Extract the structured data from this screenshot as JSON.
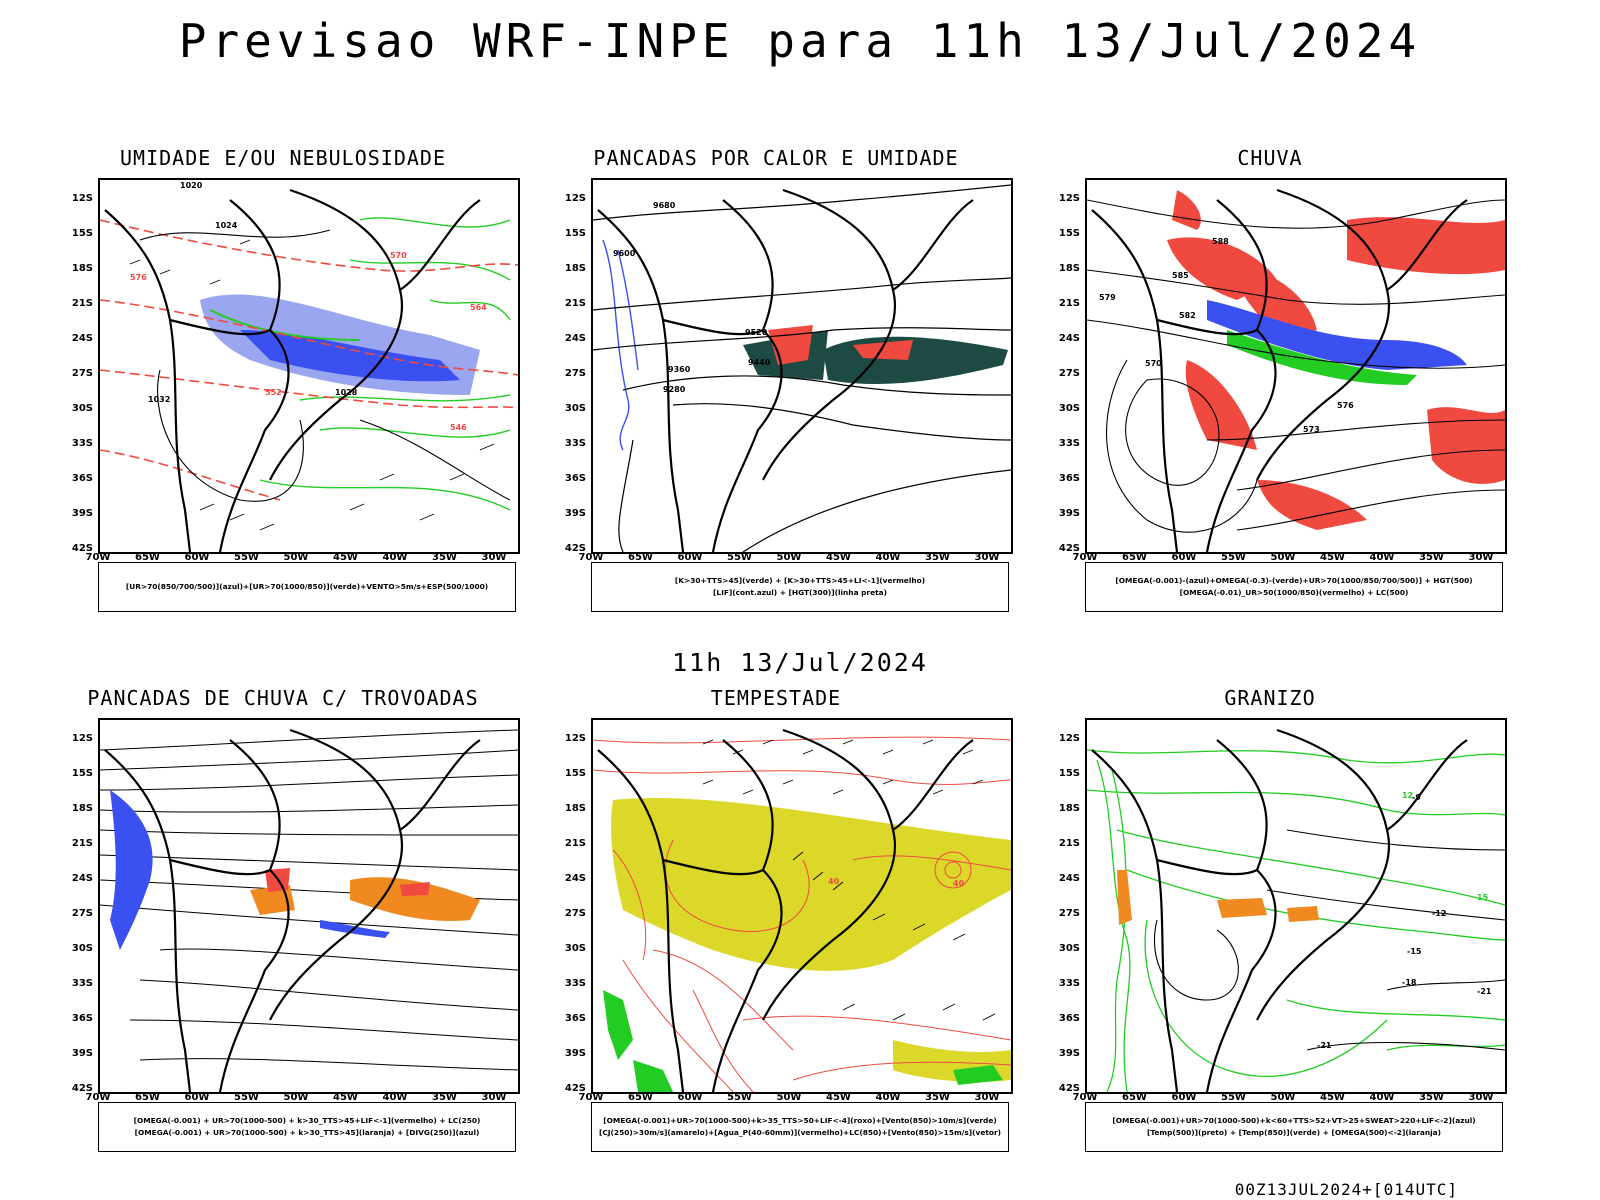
{
  "title": "Previsao WRF-INPE  para 11h 13/Jul/2024",
  "middle_timestamp": "11h 13/Jul/2024",
  "footer": "00Z13JUL2024+[014UTC]",
  "lat_labels": [
    "12S",
    "15S",
    "18S",
    "21S",
    "24S",
    "27S",
    "30S",
    "33S",
    "36S",
    "39S",
    "42S"
  ],
  "lon_labels": [
    "70W",
    "65W",
    "60W",
    "55W",
    "50W",
    "45W",
    "40W",
    "35W",
    "30W"
  ],
  "colors": {
    "blue": "#3a50f0",
    "light_blue": "#9aa6f0",
    "green": "#22cc22",
    "red": "#f04a40",
    "orange": "#f08a20",
    "yellow": "#dcd82a",
    "dark_teal": "#1e4a44"
  },
  "panels": [
    {
      "title": "UMIDADE E/OU NEBULOSIDADE",
      "legend": [
        "[UR>70(850/700/500)](azul)+[UR>70(1000/850)](verde)+VENTO>5m/s+ESP(500/1000)"
      ],
      "contour_labels": [
        "1020",
        "1024",
        "1028",
        "1032",
        "564",
        "570",
        "576",
        "552",
        "546"
      ]
    },
    {
      "title": "PANCADAS POR CALOR E UMIDADE",
      "legend": [
        "[K>30+TTS>45](verde) + [K>30+TTS>45+LI<-1](vermelho)",
        "[LIF](cont.azul) + [HGT(300)](linha preta)"
      ],
      "contour_labels": [
        "9680",
        "9600",
        "9520",
        "9440",
        "9360",
        "9280"
      ]
    },
    {
      "title": "CHUVA",
      "legend": [
        "[OMEGA(-0.001)-(azul)+OMEGA(-0.3)-(verde)+UR>70(1000/850/700/500)] + HGT(500)",
        "[OMEGA(-0.01)_UR>50(1000/850)(vermelho) + LC(500)"
      ],
      "contour_labels": [
        "588",
        "585",
        "582",
        "579",
        "576",
        "573",
        "570"
      ]
    },
    {
      "title": "PANCADAS DE CHUVA C/ TROVOADAS",
      "legend": [
        "[OMEGA(-0.001) + UR>70(1000-500) + k>30_TTS>45+LIF<-1](vermelho) + LC(250)",
        "[OMEGA(-0.001) + UR>70(1000-500) + k>30_TTS>45](laranja) + [DIVG(250)](azul)"
      ],
      "contour_labels": []
    },
    {
      "title": "TEMPESTADE",
      "legend": [
        "[OMEGA(-0.001)+UR>70(1000-500)+k>35_TTS>50+LIF<-4](roxo)+[Vento(850)>10m/s](verde)",
        "[CJ(250)>30m/s](amarelo)+[Agua_P(40-60mm)](vermelho)+LC(850)+[Vento(850)>15m/s](vetor)"
      ],
      "contour_labels": [
        "40",
        "40"
      ]
    },
    {
      "title": "GRANIZO",
      "legend": [
        "[OMEGA(-0.001)+UR>70(1000-500)+k<60+TTS>52+VT>25+SWEAT>220+LIF<-2](azul)",
        "[Temp(500)](preto) + [Temp(850)](verde) + [OMEGA(500)<-2](laranja)"
      ],
      "contour_labels": [
        "-9",
        "-12",
        "-15",
        "-18",
        "-21",
        "-21",
        "12",
        "15"
      ]
    }
  ]
}
